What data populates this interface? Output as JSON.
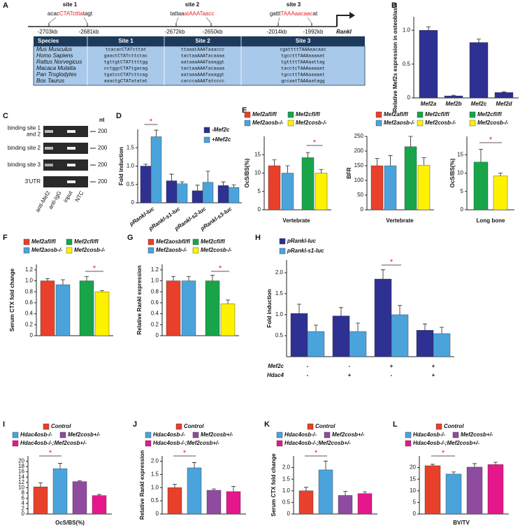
{
  "figure_a": {
    "panel": "A",
    "gene": "Rankl",
    "sites": [
      {
        "label": "site 1",
        "sequence": [
          "acac",
          "CTATcttta",
          "tagt"
        ],
        "start": "-2703kb",
        "end": "-2681kb"
      },
      {
        "label": "site 2",
        "sequence": [
          "tattaa",
          "atAAATaacc"
        ],
        "start": "-2672kb",
        "end": "-2650kb"
      },
      {
        "label": "site 3",
        "sequence": [
          "gattt",
          "TAAAaacaac",
          "at"
        ],
        "start": "-2014kb",
        "end": "-1992kb"
      }
    ],
    "table": {
      "header": [
        "Species",
        "Site 1",
        "Site 2",
        "Site 3"
      ],
      "rows": [
        [
          "Mus Musculus",
          "tcacacCTATcttat",
          "ttaaatAAATaaaccc",
          "cgattttTAAAaacaac"
        ],
        [
          "Homo Sapiens",
          "gaactCTATcttctac",
          "tactaaAAATacaaaa",
          "tgccttTAAAaaaaat"
        ],
        [
          "Rattus Norvegicus",
          "tgttgtCTATttttgg",
          "aataaaAAATaaaggt",
          "tgttttTAAAaattag"
        ],
        [
          "Macaca Mulatta",
          "cctggcCTATtgacag",
          "tactaaAAATacaaaa",
          "tacctcTAAAaaaaat"
        ],
        [
          "Pan Troglodytes",
          "tgatccCTATcttcag",
          "aataaaAAATaaaggt",
          "tgccttTAAAaaaaat"
        ],
        [
          "Bos Taurus",
          "aaactgCTATatatat",
          "cacccaAAATatcccc",
          "gccaatTAAAaatagg"
        ]
      ]
    }
  },
  "figure_c": {
    "panel": "C",
    "unit": "nt",
    "rows": [
      {
        "label": [
          "binding site 1",
          "and 2"
        ],
        "size": 200
      },
      {
        "label": [
          "binding site 2"
        ],
        "size": 200
      },
      {
        "label": [
          "binding site 3"
        ],
        "size": 200
      },
      {
        "label": [
          "3'UTR"
        ],
        "size": 200
      }
    ],
    "lanes": [
      "anti-Mef2",
      "anti-IgG",
      "input",
      "NTC"
    ]
  },
  "chart_data": [
    {
      "type": "bar",
      "panel": "B",
      "ylabel": "Relative Mef2s expression in osteoblasts",
      "categories": [
        "Mef2a",
        "Mef2b",
        "Mef2c",
        "Mef2d"
      ],
      "values": [
        1.0,
        0.03,
        0.82,
        0.08
      ],
      "errors": [
        0.05,
        0.01,
        0.05,
        0.01
      ],
      "color": "#2e3192",
      "ylim": [
        0,
        1.2
      ],
      "yticks": [
        0,
        0.5,
        {
          "value": 1,
          "label": "1.0"
        }
      ]
    },
    {
      "type": "bar",
      "panel": "D",
      "ylabel": "Fold induction",
      "categories": [
        "pRankl-luc",
        "pRankl-s1-luc",
        "pRankl-s2-luc",
        "pRankl-s3-luc"
      ],
      "series": [
        {
          "name": "-Mef2c",
          "color": "#2e3192",
          "values": [
            1.0,
            0.6,
            0.33,
            0.47
          ],
          "errors": [
            0.05,
            0.18,
            0.15,
            0.1
          ]
        },
        {
          "name": "+Mef2c",
          "color": "#4ba3dc",
          "values": [
            1.8,
            0.52,
            0.56,
            0.42
          ],
          "errors": [
            0.18,
            0.05,
            0.3,
            0.07
          ]
        }
      ],
      "ylim": [
        0,
        2
      ],
      "yticks": [
        0,
        0.5,
        {
          "value": 1,
          "label": "1.0"
        },
        1.5
      ],
      "annotation": "*"
    },
    {
      "type": "bar",
      "panel": "E",
      "ylabel": "OcS/BS(%)",
      "xlabel": "Vertebrate",
      "series": [
        {
          "name": "Mef2afl/fl",
          "color": "#e8402a",
          "values": [
            12
          ],
          "errors": [
            1.6
          ]
        },
        {
          "name": "Mef2aosb-/-",
          "color": "#4ba3dc",
          "values": [
            10
          ],
          "errors": [
            2
          ]
        },
        {
          "name": "Mef2cfl/fl",
          "color": "#18a54a",
          "values": [
            14.2
          ],
          "errors": [
            1.4
          ]
        },
        {
          "name": "Mef2cosb-/-",
          "color": "#fff200",
          "values": [
            10
          ],
          "errors": [
            1
          ]
        }
      ],
      "ylim": [
        0,
        20
      ],
      "yticks": [
        0,
        5,
        10,
        15
      ],
      "annotation": "*"
    },
    {
      "type": "bar",
      "ylabel": "BFR",
      "xlabel": "Vertebrate",
      "series": [
        {
          "name": "Mef2afl/fl",
          "color": "#e8402a",
          "values": [
            150
          ],
          "errors": [
            25
          ]
        },
        {
          "name": "Mef2aosb-/-",
          "color": "#4ba3dc",
          "values": [
            150
          ],
          "errors": [
            35
          ]
        },
        {
          "name": "Mef2cfl/fl",
          "color": "#18a54a",
          "values": [
            215
          ],
          "errors": [
            35
          ]
        },
        {
          "name": "Mef2cosb-/-",
          "color": "#fff200",
          "values": [
            152
          ],
          "errors": [
            25
          ]
        }
      ],
      "ylim": [
        0,
        250
      ],
      "yticks": [
        0,
        50,
        100,
        150,
        200,
        250
      ]
    },
    {
      "type": "bar",
      "ylabel": "OcS/BS(%)",
      "xlabel": "Long bone",
      "series": [
        {
          "name": "Mef2cfl/fl",
          "color": "#18a54a",
          "values": [
            13
          ],
          "errors": [
            3.5
          ]
        },
        {
          "name": "Mef2cosb-/-",
          "color": "#fff200",
          "values": [
            9.2
          ],
          "errors": [
            0.8
          ]
        }
      ],
      "ylim": [
        0,
        20
      ],
      "yticks": [
        0,
        5,
        10,
        15
      ],
      "annotation": "*"
    },
    {
      "type": "bar",
      "panel": "F",
      "ylabel": "Serum CTX fold change",
      "series": [
        {
          "name": "Mef2afl/fl",
          "color": "#e8402a",
          "values": [
            1.0
          ],
          "errors": [
            0.04
          ]
        },
        {
          "name": "Mef2aosb-/-",
          "color": "#4ba3dc",
          "values": [
            0.93
          ],
          "errors": [
            0.09
          ]
        },
        {
          "name": "Mef2cfl/fl",
          "color": "#18a54a",
          "values": [
            1.0
          ],
          "errors": [
            0.08
          ]
        },
        {
          "name": "Mef2cosb-/-",
          "color": "#fff200",
          "values": [
            0.8
          ],
          "errors": [
            0.02
          ]
        }
      ],
      "ylim": [
        0,
        1.3
      ],
      "yticks": [
        0,
        0.2,
        0.4,
        0.6,
        0.8,
        {
          "value": 1,
          "label": "1.0"
        },
        1.2
      ],
      "annotation": "*"
    },
    {
      "type": "bar",
      "panel": "G",
      "ylabel": "Relative Rankl expression",
      "series": [
        {
          "name": "Mef2aosbfl/fl",
          "color": "#e8402a",
          "values": [
            1.0
          ],
          "errors": [
            0.08
          ]
        },
        {
          "name": "Mef2aosb-/-",
          "color": "#4ba3dc",
          "values": [
            1.0
          ],
          "errors": [
            0.08
          ]
        },
        {
          "name": "Mef2cfl/fl",
          "color": "#18a54a",
          "values": [
            1.0
          ],
          "errors": [
            0.1
          ]
        },
        {
          "name": "Mef2cosb-/-",
          "color": "#fff200",
          "values": [
            0.58
          ],
          "errors": [
            0.07
          ]
        }
      ],
      "ylim": [
        0,
        1.3
      ],
      "yticks": [
        0,
        0.2,
        0.4,
        0.6,
        0.8,
        {
          "value": 1,
          "label": "1.0"
        },
        1.2
      ],
      "annotation": "*"
    },
    {
      "type": "bar",
      "panel": "H",
      "ylabel": "Fold induction",
      "series": [
        {
          "name": "pRankl-luc",
          "color": "#2e3192",
          "values": [
            1.03,
            0.97,
            1.85,
            0.63
          ],
          "errors": [
            0.22,
            0.2,
            0.22,
            0.15
          ]
        },
        {
          "name": "pRankl-s1-luc",
          "color": "#4ba3dc",
          "values": [
            0.6,
            0.6,
            1.0,
            0.55
          ],
          "errors": [
            0.15,
            0.2,
            0.22,
            0.15
          ]
        }
      ],
      "conditions": [
        {
          "name": "Mef2c",
          "values": [
            "-",
            "-",
            "+",
            "+"
          ]
        },
        {
          "name": "Hdac4",
          "values": [
            "-",
            "+",
            "-",
            "+"
          ]
        }
      ],
      "ylim": [
        0,
        2.3
      ],
      "yticks": [
        0.5,
        {
          "value": 1,
          "label": "1.0"
        },
        1.5,
        {
          "value": 2,
          "label": "2.0"
        }
      ],
      "annotation": "*"
    },
    {
      "type": "bar",
      "panel": "I",
      "xlabel": "OcS/BS(%)",
      "series": [
        {
          "name": "Control",
          "color": "#e8402a",
          "values": [
            10.3
          ],
          "errors": [
            1.5
          ]
        },
        {
          "name": "Hdac4osb-/-",
          "color": "#4ba3dc",
          "values": [
            17.2
          ],
          "errors": [
            2
          ]
        },
        {
          "name": "Mef2cosb+/-",
          "color": "#8f4b9f",
          "values": [
            12.3
          ],
          "errors": [
            0.3
          ]
        },
        {
          "name": "Hdac4osb-/-;Mef2cosb+/-",
          "color": "#e6168b",
          "values": [
            7
          ],
          "errors": [
            0.4
          ]
        }
      ],
      "ylim": [
        0,
        22
      ],
      "yticks": [
        0,
        2,
        4,
        6,
        8,
        10,
        12,
        14,
        16,
        18,
        20
      ],
      "annotation": "*"
    },
    {
      "type": "bar",
      "panel": "J",
      "ylabel": "Relative Rankl expression",
      "series": [
        {
          "name": "Control",
          "color": "#e8402a",
          "values": [
            1.0
          ],
          "errors": [
            0.13
          ]
        },
        {
          "name": "Hdac4osb-/-",
          "color": "#4ba3dc",
          "values": [
            1.75
          ],
          "errors": [
            0.2
          ]
        },
        {
          "name": "Mef2cosb+/-",
          "color": "#8f4b9f",
          "values": [
            0.9
          ],
          "errors": [
            0.05
          ]
        },
        {
          "name": "Hdac4osb-/-;Mef2cosb+/-",
          "color": "#e6168b",
          "values": [
            0.85
          ],
          "errors": [
            0.2
          ]
        }
      ],
      "ylim": [
        0,
        2.2
      ],
      "yticks": [
        0,
        0.5,
        {
          "value": 1,
          "label": "1.0"
        },
        1.5,
        {
          "value": 2,
          "label": "2.0"
        }
      ],
      "annotation": "*"
    },
    {
      "type": "bar",
      "panel": "K",
      "ylabel": "Serum CTX fold change",
      "series": [
        {
          "name": "Control",
          "color": "#e8402a",
          "values": [
            1.0
          ],
          "errors": [
            0.15
          ]
        },
        {
          "name": "Hdac4osb-/-",
          "color": "#4ba3dc",
          "values": [
            1.9
          ],
          "errors": [
            0.38
          ]
        },
        {
          "name": "Mef2cosb+/-",
          "color": "#8f4b9f",
          "values": [
            0.8
          ],
          "errors": [
            0.18
          ]
        },
        {
          "name": "Hdac4osb-/-;Mef2cosb+/-",
          "color": "#e6168b",
          "values": [
            0.88
          ],
          "errors": [
            0.08
          ]
        }
      ],
      "ylim": [
        0,
        2.5
      ],
      "yticks": [
        0,
        0.5,
        {
          "value": 1,
          "label": "1.0"
        },
        1.5,
        {
          "value": 2,
          "label": "2.0"
        }
      ],
      "annotation": "*"
    },
    {
      "type": "bar",
      "panel": "L",
      "xlabel": "BV/TV",
      "series": [
        {
          "name": "Control",
          "color": "#e8402a",
          "values": [
            20.8
          ],
          "errors": [
            0.6
          ]
        },
        {
          "name": "Hdac4osb-/-",
          "color": "#4ba3dc",
          "values": [
            17.2
          ],
          "errors": [
            0.9
          ]
        },
        {
          "name": "Mef2cosb+/-",
          "color": "#8f4b9f",
          "values": [
            20.2
          ],
          "errors": [
            1.5
          ]
        },
        {
          "name": "Hdac4osb-/-;Mef2cosb+/-",
          "color": "#e6168b",
          "values": [
            21.3
          ],
          "errors": [
            1.0
          ]
        }
      ],
      "ylim": [
        0,
        25
      ],
      "yticks": [
        0,
        5,
        10,
        15,
        20
      ],
      "annotation": "*"
    }
  ]
}
